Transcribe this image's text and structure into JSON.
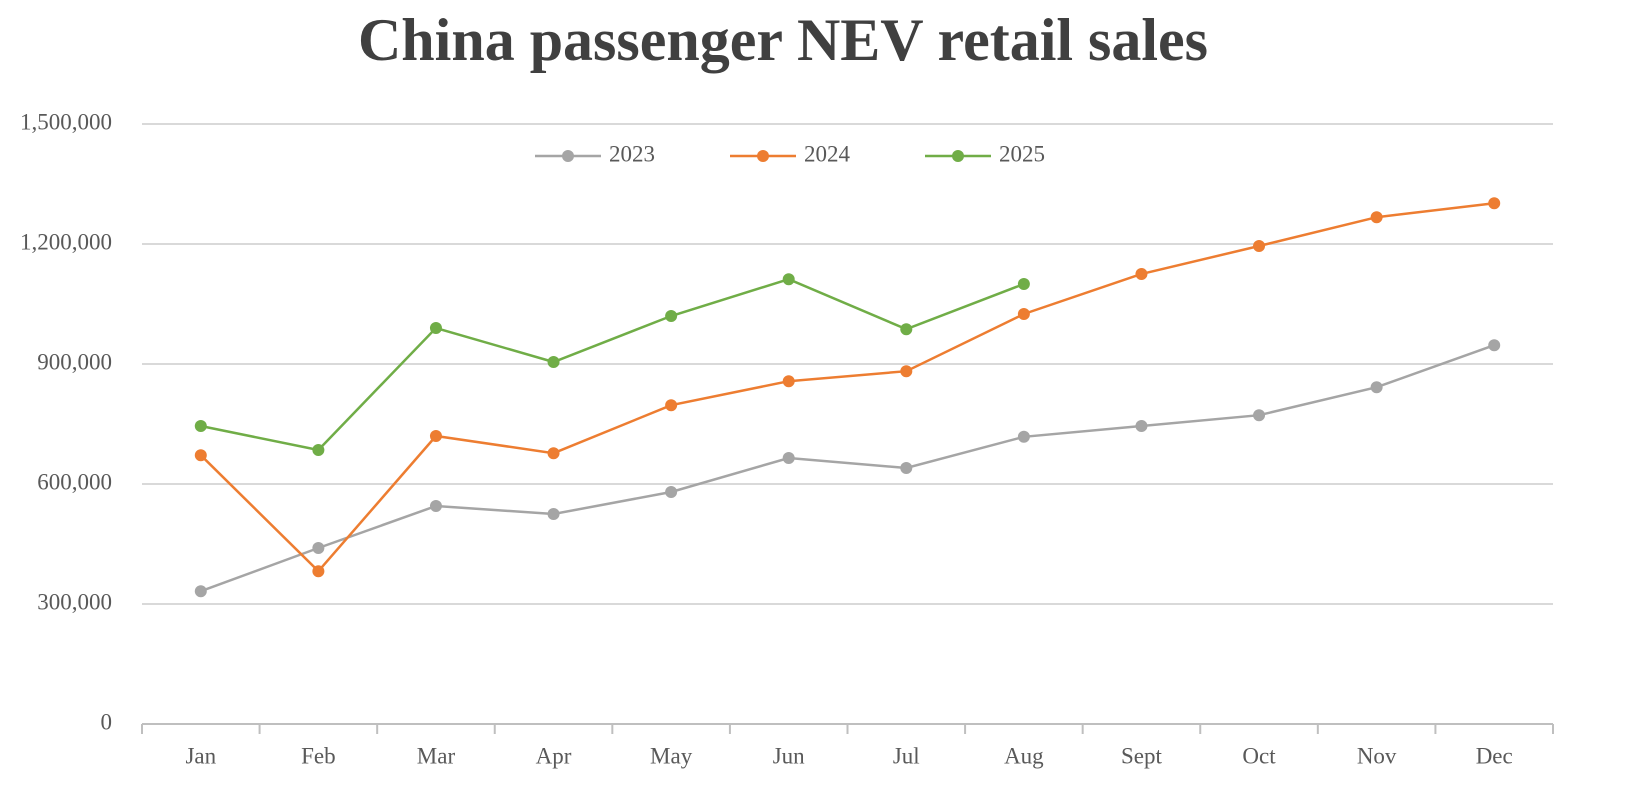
{
  "chart_data": {
    "type": "line",
    "title": "China passenger NEV retail sales",
    "categories": [
      "Jan",
      "Feb",
      "Mar",
      "Apr",
      "May",
      "Jun",
      "Jul",
      "Aug",
      "Sept",
      "Oct",
      "Nov",
      "Dec"
    ],
    "series": [
      {
        "name": "2023",
        "color": "#a5a5a5",
        "values": [
          332000,
          440000,
          545000,
          525000,
          580000,
          665000,
          640000,
          718000,
          745000,
          772000,
          842000,
          947000
        ]
      },
      {
        "name": "2024",
        "color": "#ed7d31",
        "values": [
          672000,
          382000,
          720000,
          677000,
          797000,
          857000,
          882000,
          1025000,
          1125000,
          1195000,
          1267000,
          1302000
        ]
      },
      {
        "name": "2025",
        "color": "#70ad47",
        "values": [
          745000,
          685000,
          990000,
          905000,
          1020000,
          1112000,
          987000,
          1100000,
          null,
          null,
          null,
          null
        ]
      }
    ],
    "ylim": [
      0,
      1500000
    ],
    "yticks": [
      0,
      {
        "value": 300000,
        "label": "300,000"
      },
      {
        "value": 600000,
        "label": "600,000"
      },
      {
        "value": 900000,
        "label": "900,000"
      },
      {
        "value": 1200000,
        "label": "1,200,000"
      },
      {
        "value": 1500000,
        "label": "1,500,000"
      }
    ],
    "grid": true,
    "legend": "top"
  }
}
